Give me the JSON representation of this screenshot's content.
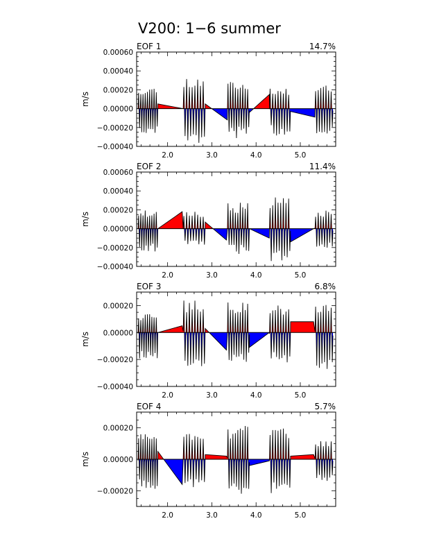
{
  "figure": {
    "title": "V200: 1−6 summer"
  },
  "colors": {
    "positive": "#ff0000",
    "negative": "#0000ff",
    "curve": "#000000",
    "frame": "#000000"
  },
  "chart_data": [
    {
      "type": "area",
      "label": "EOF 1",
      "percent": "14.7%",
      "ylabel": "m/s",
      "xlim": [
        1.3,
        5.8
      ],
      "ylim": [
        -0.0004,
        0.0006
      ],
      "xticks": [
        2.0,
        3.0,
        4.0,
        5.0
      ],
      "xtick_labels": [
        "2.0",
        "3.0",
        "4.0",
        "5.0"
      ],
      "yticks": [
        -0.0004,
        -0.0002,
        0.0,
        0.0002,
        0.0004,
        0.0006
      ],
      "ytick_labels": [
        "−0.00040",
        "−0.00020",
        "0.00000",
        "0.00020",
        "0.00040",
        "0.00060"
      ],
      "segments": [
        {
          "x0": 1.33,
          "x1": 1.78,
          "n": 9,
          "amp": 0.00019,
          "var": 0.45,
          "neg_ratio": 1.2
        },
        {
          "gap_x0": 1.78,
          "gap_y0": 5e-05,
          "gap_x1": 2.35,
          "gap_y1": 0.0
        },
        {
          "x0": 2.35,
          "x1": 2.85,
          "n": 8,
          "amp": 0.00028,
          "var": 0.4,
          "neg_ratio": 1.1
        },
        {
          "gap_x0": 2.85,
          "gap_y0": 5e-05,
          "gap_x1": 3.35,
          "gap_y1": -0.00012
        },
        {
          "x0": 3.35,
          "x1": 3.85,
          "n": 9,
          "amp": 0.00025,
          "var": 0.5,
          "neg_ratio": 1.0
        },
        {
          "gap_x0": 3.85,
          "gap_y0": -4e-05,
          "gap_x1": 4.3,
          "gap_y1": 0.00015
        },
        {
          "x0": 4.3,
          "x1": 4.78,
          "n": 8,
          "amp": 0.00017,
          "var": 0.5,
          "neg_ratio": 1.35
        },
        {
          "gap_x0": 4.78,
          "gap_y0": -3e-05,
          "gap_x1": 5.33,
          "gap_y1": -9e-05
        },
        {
          "x0": 5.33,
          "x1": 5.74,
          "n": 7,
          "amp": 0.00022,
          "var": 0.4,
          "neg_ratio": 1.1
        }
      ],
      "seed": 11
    },
    {
      "type": "area",
      "label": "EOF 2",
      "percent": "11.4%",
      "ylabel": "m/s",
      "xlim": [
        1.3,
        5.8
      ],
      "ylim": [
        -0.0004,
        0.0006
      ],
      "xticks": [
        2.0,
        3.0,
        4.0,
        5.0
      ],
      "xtick_labels": [
        "2.0",
        "3.0",
        "4.0",
        "5.0"
      ],
      "yticks": [
        -0.0004,
        -0.0002,
        0.0,
        0.0002,
        0.0004,
        0.0006
      ],
      "ytick_labels": [
        "−0.00040",
        "−0.00020",
        "0.00000",
        "0.00020",
        "0.00040",
        "0.00060"
      ],
      "segments": [
        {
          "x0": 1.33,
          "x1": 1.78,
          "n": 9,
          "amp": 0.00016,
          "var": 0.5,
          "neg_ratio": 1.3
        },
        {
          "gap_x0": 1.78,
          "gap_y0": 0.0,
          "gap_x1": 2.33,
          "gap_y1": 0.00018
        },
        {
          "x0": 2.35,
          "x1": 2.85,
          "n": 8,
          "amp": 0.00015,
          "var": 0.45,
          "neg_ratio": 1.05
        },
        {
          "gap_x0": 2.85,
          "gap_y0": 7e-05,
          "gap_x1": 3.33,
          "gap_y1": -0.00012
        },
        {
          "x0": 3.35,
          "x1": 3.85,
          "n": 9,
          "amp": 0.00022,
          "var": 0.5,
          "neg_ratio": 1.0
        },
        {
          "gap_x0": 3.85,
          "gap_y0": -0.0,
          "gap_x1": 4.3,
          "gap_y1": -0.0001
        },
        {
          "x0": 4.3,
          "x1": 4.78,
          "n": 8,
          "amp": 0.00027,
          "var": 0.45,
          "neg_ratio": 1.05
        },
        {
          "gap_x0": 4.78,
          "gap_y0": -0.00014,
          "gap_x1": 5.3,
          "gap_y1": 0.0
        },
        {
          "x0": 5.33,
          "x1": 5.74,
          "n": 7,
          "amp": 0.00016,
          "var": 0.45,
          "neg_ratio": 1.2
        }
      ],
      "seed": 23
    },
    {
      "type": "area",
      "label": "EOF 3",
      "percent": "6.8%",
      "ylabel": "m/s",
      "xlim": [
        1.3,
        5.8
      ],
      "ylim": [
        -0.0004,
        0.0003
      ],
      "xticks": [
        2.0,
        3.0,
        4.0,
        5.0
      ],
      "xtick_labels": [
        "2.0",
        "3.0",
        "4.0",
        "5.0"
      ],
      "yticks": [
        -0.0004,
        -0.0002,
        0.0,
        0.0002
      ],
      "ytick_labels": [
        "−0.00040",
        "−0.00020",
        "0.00000",
        "0.00020"
      ],
      "segments": [
        {
          "x0": 1.33,
          "x1": 1.78,
          "n": 9,
          "amp": 0.00012,
          "var": 0.5,
          "neg_ratio": 1.5
        },
        {
          "gap_x0": 1.78,
          "gap_y0": 0.0,
          "gap_x1": 2.33,
          "gap_y1": 5e-05
        },
        {
          "x0": 2.35,
          "x1": 2.85,
          "n": 8,
          "amp": 0.00019,
          "var": 0.5,
          "neg_ratio": 1.15
        },
        {
          "gap_x0": 2.85,
          "gap_y0": 3e-05,
          "gap_x1": 3.33,
          "gap_y1": -0.00013
        },
        {
          "x0": 3.35,
          "x1": 3.85,
          "n": 9,
          "amp": 0.00018,
          "var": 0.5,
          "neg_ratio": 1.0
        },
        {
          "gap_x0": 3.85,
          "gap_y0": -0.00011,
          "gap_x1": 4.3,
          "gap_y1": -0.0
        },
        {
          "x0": 4.3,
          "x1": 4.78,
          "n": 8,
          "amp": 0.00017,
          "var": 0.5,
          "neg_ratio": 1.1
        },
        {
          "gap_x0": 4.78,
          "gap_y0": 8e-05,
          "gap_x1": 5.3,
          "gap_y1": 8e-05
        },
        {
          "x0": 5.33,
          "x1": 5.74,
          "n": 7,
          "amp": 0.00017,
          "var": 0.45,
          "neg_ratio": 1.3
        }
      ],
      "seed": 37
    },
    {
      "type": "area",
      "label": "EOF 4",
      "percent": "5.7%",
      "ylabel": "m/s",
      "xlim": [
        1.3,
        5.8
      ],
      "ylim": [
        -0.0003,
        0.0003
      ],
      "xticks": [
        2.0,
        3.0,
        4.0,
        5.0
      ],
      "xtick_labels": [
        "2.0",
        "3.0",
        "4.0",
        "5.0"
      ],
      "yticks": [
        -0.0002,
        0.0,
        0.0002
      ],
      "ytick_labels": [
        "−0.00020",
        "0.00000",
        "0.00020"
      ],
      "segments": [
        {
          "x0": 1.33,
          "x1": 1.78,
          "n": 9,
          "amp": 0.00015,
          "var": 0.45,
          "neg_ratio": 1.05
        },
        {
          "gap_x0": 1.78,
          "gap_y0": 5e-05,
          "gap_x1": 2.33,
          "gap_y1": -0.00016
        },
        {
          "x0": 2.35,
          "x1": 2.85,
          "n": 8,
          "amp": 0.00016,
          "var": 0.45,
          "neg_ratio": 1.0
        },
        {
          "gap_x0": 2.85,
          "gap_y0": 3e-05,
          "gap_x1": 3.33,
          "gap_y1": 2e-05
        },
        {
          "x0": 3.35,
          "x1": 3.85,
          "n": 9,
          "amp": 0.00017,
          "var": 0.5,
          "neg_ratio": 1.05
        },
        {
          "gap_x0": 3.85,
          "gap_y0": -4e-05,
          "gap_x1": 4.3,
          "gap_y1": -1e-05
        },
        {
          "x0": 4.3,
          "x1": 4.78,
          "n": 8,
          "amp": 0.00017,
          "var": 0.5,
          "neg_ratio": 1.1
        },
        {
          "gap_x0": 4.78,
          "gap_y0": 2e-05,
          "gap_x1": 5.3,
          "gap_y1": 3e-05
        },
        {
          "x0": 5.33,
          "x1": 5.74,
          "n": 7,
          "amp": 0.0001,
          "var": 0.4,
          "neg_ratio": 1.2
        }
      ],
      "seed": 53
    }
  ]
}
